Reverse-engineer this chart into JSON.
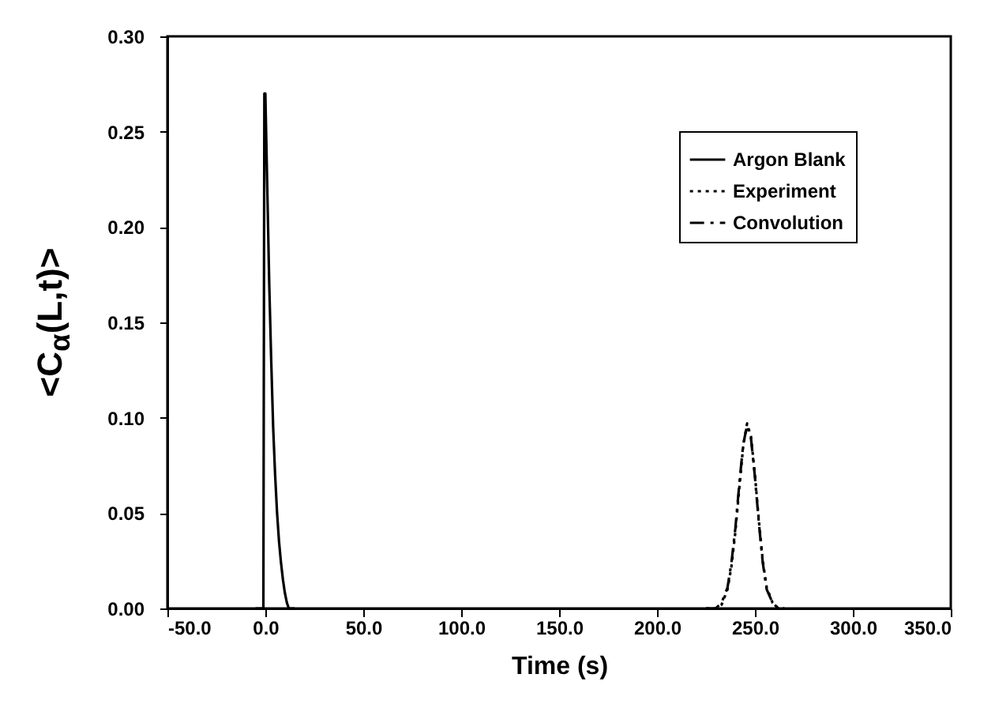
{
  "chart_data": {
    "type": "line",
    "xlabel": "Time (s)",
    "ylabel": "<C$_{α}$(L,t)>",
    "xlim": [
      -50,
      350
    ],
    "ylim": [
      0,
      0.3
    ],
    "xticks": [
      {
        "value": -50,
        "label": "-50.0"
      },
      {
        "value": 0,
        "label": "0.0"
      },
      {
        "value": 50,
        "label": "50.0"
      },
      {
        "value": 100,
        "label": "100.0"
      },
      {
        "value": 150,
        "label": "150.0"
      },
      {
        "value": 200,
        "label": "200.0"
      },
      {
        "value": 250,
        "label": "250.0"
      },
      {
        "value": 300,
        "label": "300.0"
      },
      {
        "value": 350,
        "label": "350.0"
      }
    ],
    "yticks": [
      {
        "value": 0,
        "label": "0.00"
      },
      {
        "value": 0.05,
        "label": "0.05"
      },
      {
        "value": 0.1,
        "label": "0.10"
      },
      {
        "value": 0.15,
        "label": "0.15"
      },
      {
        "value": 0.2,
        "label": "0.20"
      },
      {
        "value": 0.25,
        "label": "0.25"
      },
      {
        "value": 0.3,
        "label": "0.30"
      }
    ],
    "grid": false,
    "legend": "top right",
    "series": [
      {
        "name": "Argon Blank",
        "color": "#000000",
        "line_style": "solid",
        "x": [
          -5,
          -1,
          -0.5,
          0,
          1,
          2,
          3,
          4,
          5,
          6,
          7,
          8,
          9,
          10,
          11,
          12,
          15
        ],
        "values": [
          0,
          0,
          0.27,
          0.27,
          0.22,
          0.17,
          0.13,
          0.095,
          0.07,
          0.05,
          0.035,
          0.024,
          0.015,
          0.008,
          0.003,
          0,
          0
        ]
      },
      {
        "name": "Experiment",
        "color": "#000000",
        "line_style": "dotted",
        "x": [
          225,
          230,
          233,
          236,
          238,
          240,
          242,
          244,
          246,
          248,
          250,
          252,
          254,
          256,
          259,
          262,
          265
        ],
        "values": [
          0,
          0,
          0.002,
          0.01,
          0.022,
          0.04,
          0.063,
          0.085,
          0.097,
          0.09,
          0.07,
          0.046,
          0.025,
          0.011,
          0.003,
          0,
          0
        ]
      },
      {
        "name": "Convolution",
        "color": "#000000",
        "line_style": "dashed",
        "x": [
          225,
          230,
          233,
          236,
          238,
          240,
          242,
          244,
          246,
          248,
          250,
          252,
          254,
          256,
          259,
          262,
          265
        ],
        "values": [
          0,
          0,
          0.003,
          0.011,
          0.024,
          0.042,
          0.065,
          0.086,
          0.096,
          0.089,
          0.069,
          0.045,
          0.024,
          0.01,
          0.003,
          0,
          0
        ]
      }
    ]
  }
}
